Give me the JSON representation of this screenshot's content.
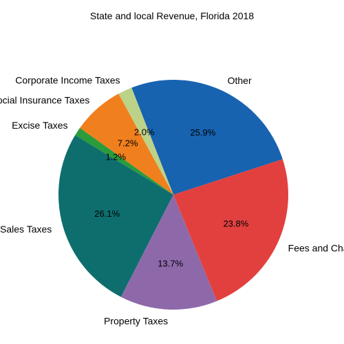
{
  "chart_data": {
    "type": "pie",
    "title": "State and local Revenue, Florida 2018",
    "slices": [
      {
        "label": "Other",
        "value": 25.9,
        "pct_label": "25.9%",
        "color": "#1763b0"
      },
      {
        "label": "Corporate Income Taxes",
        "value": 2.0,
        "pct_label": "2.0%",
        "color": "#bdd289"
      },
      {
        "label": "Social Insurance Taxes",
        "value": 7.2,
        "pct_label": "7.2%",
        "color": "#f07f1e"
      },
      {
        "label": "Excise Taxes",
        "value": 1.2,
        "pct_label": "1.2%",
        "color": "#2a9c3b"
      },
      {
        "label": "Sales Taxes",
        "value": 26.1,
        "pct_label": "26.1%",
        "color": "#0e6e6e"
      },
      {
        "label": "Property Taxes",
        "value": 13.7,
        "pct_label": "13.7%",
        "color": "#8e69aa"
      },
      {
        "label": "Fees and Charges",
        "value": 23.8,
        "pct_label": "23.8%",
        "color": "#e2403f"
      }
    ]
  }
}
